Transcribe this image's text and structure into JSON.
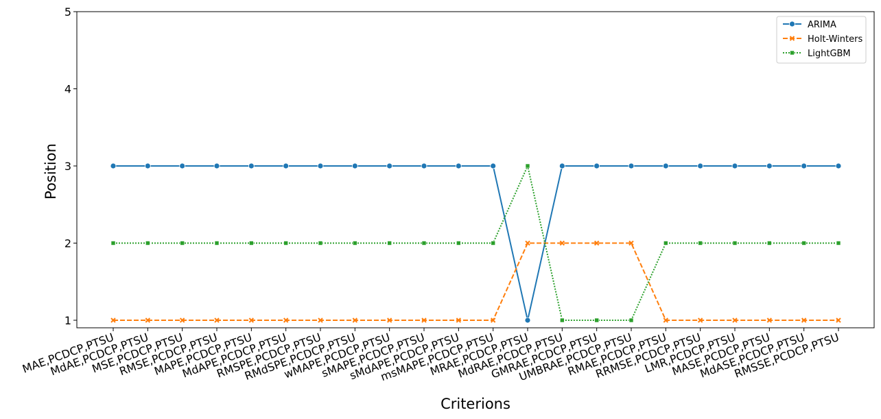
{
  "chart_data": {
    "type": "line",
    "xlabel": "Criterions",
    "ylabel": "Position",
    "ylim": [
      1,
      5
    ],
    "yticks": [
      1,
      2,
      3,
      4,
      5
    ],
    "grid": false,
    "legend_position": "top-right",
    "categories": [
      "MAE,PCDCP,PTSU",
      "MdAE,PCDCP,PTSU",
      "MSE,PCDCP,PTSU",
      "RMSE,PCDCP,PTSU",
      "MAPE,PCDCP,PTSU",
      "MdAPE,PCDCP,PTSU",
      "RMSPE,PCDCP,PTSU",
      "RMdSPE,PCDCP,PTSU",
      "wMAPE,PCDCP,PTSU",
      "sMAPE,PCDCP,PTSU",
      "sMdAPE,PCDCP,PTSU",
      "msMAPE,PCDCP,PTSU",
      "MRAE,PCDCP,PTSU",
      "MdRAE,PCDCP,PTSU",
      "GMRAE,PCDCP,PTSU",
      "UMBRAE,PCDCP,PTSU",
      "RMAE,PCDCP,PTSU",
      "RRMSE,PCDCP,PTSU",
      "LMR,PCDCP,PTSU",
      "MASE,PCDCP,PTSU",
      "MdASE,PCDCP,PTSU",
      "RMSSE,PCDCP,PTSU"
    ],
    "series": [
      {
        "name": "ARIMA",
        "color": "#1f77b4",
        "marker": "circle",
        "line_style": "solid",
        "values": [
          3,
          3,
          3,
          3,
          3,
          3,
          3,
          3,
          3,
          3,
          3,
          3,
          1,
          3,
          3,
          3,
          3,
          3,
          3,
          3,
          3,
          3
        ]
      },
      {
        "name": "Holt-Winters",
        "color": "#ff7f0e",
        "marker": "x",
        "line_style": "dashed",
        "values": [
          1,
          1,
          1,
          1,
          1,
          1,
          1,
          1,
          1,
          1,
          1,
          1,
          2,
          2,
          2,
          2,
          1,
          1,
          1,
          1,
          1,
          1
        ]
      },
      {
        "name": "LightGBM",
        "color": "#2ca02c",
        "marker": "square",
        "line_style": "dotted",
        "values": [
          2,
          2,
          2,
          2,
          2,
          2,
          2,
          2,
          2,
          2,
          2,
          2,
          3,
          1,
          1,
          1,
          2,
          2,
          2,
          2,
          2,
          2
        ]
      }
    ]
  }
}
